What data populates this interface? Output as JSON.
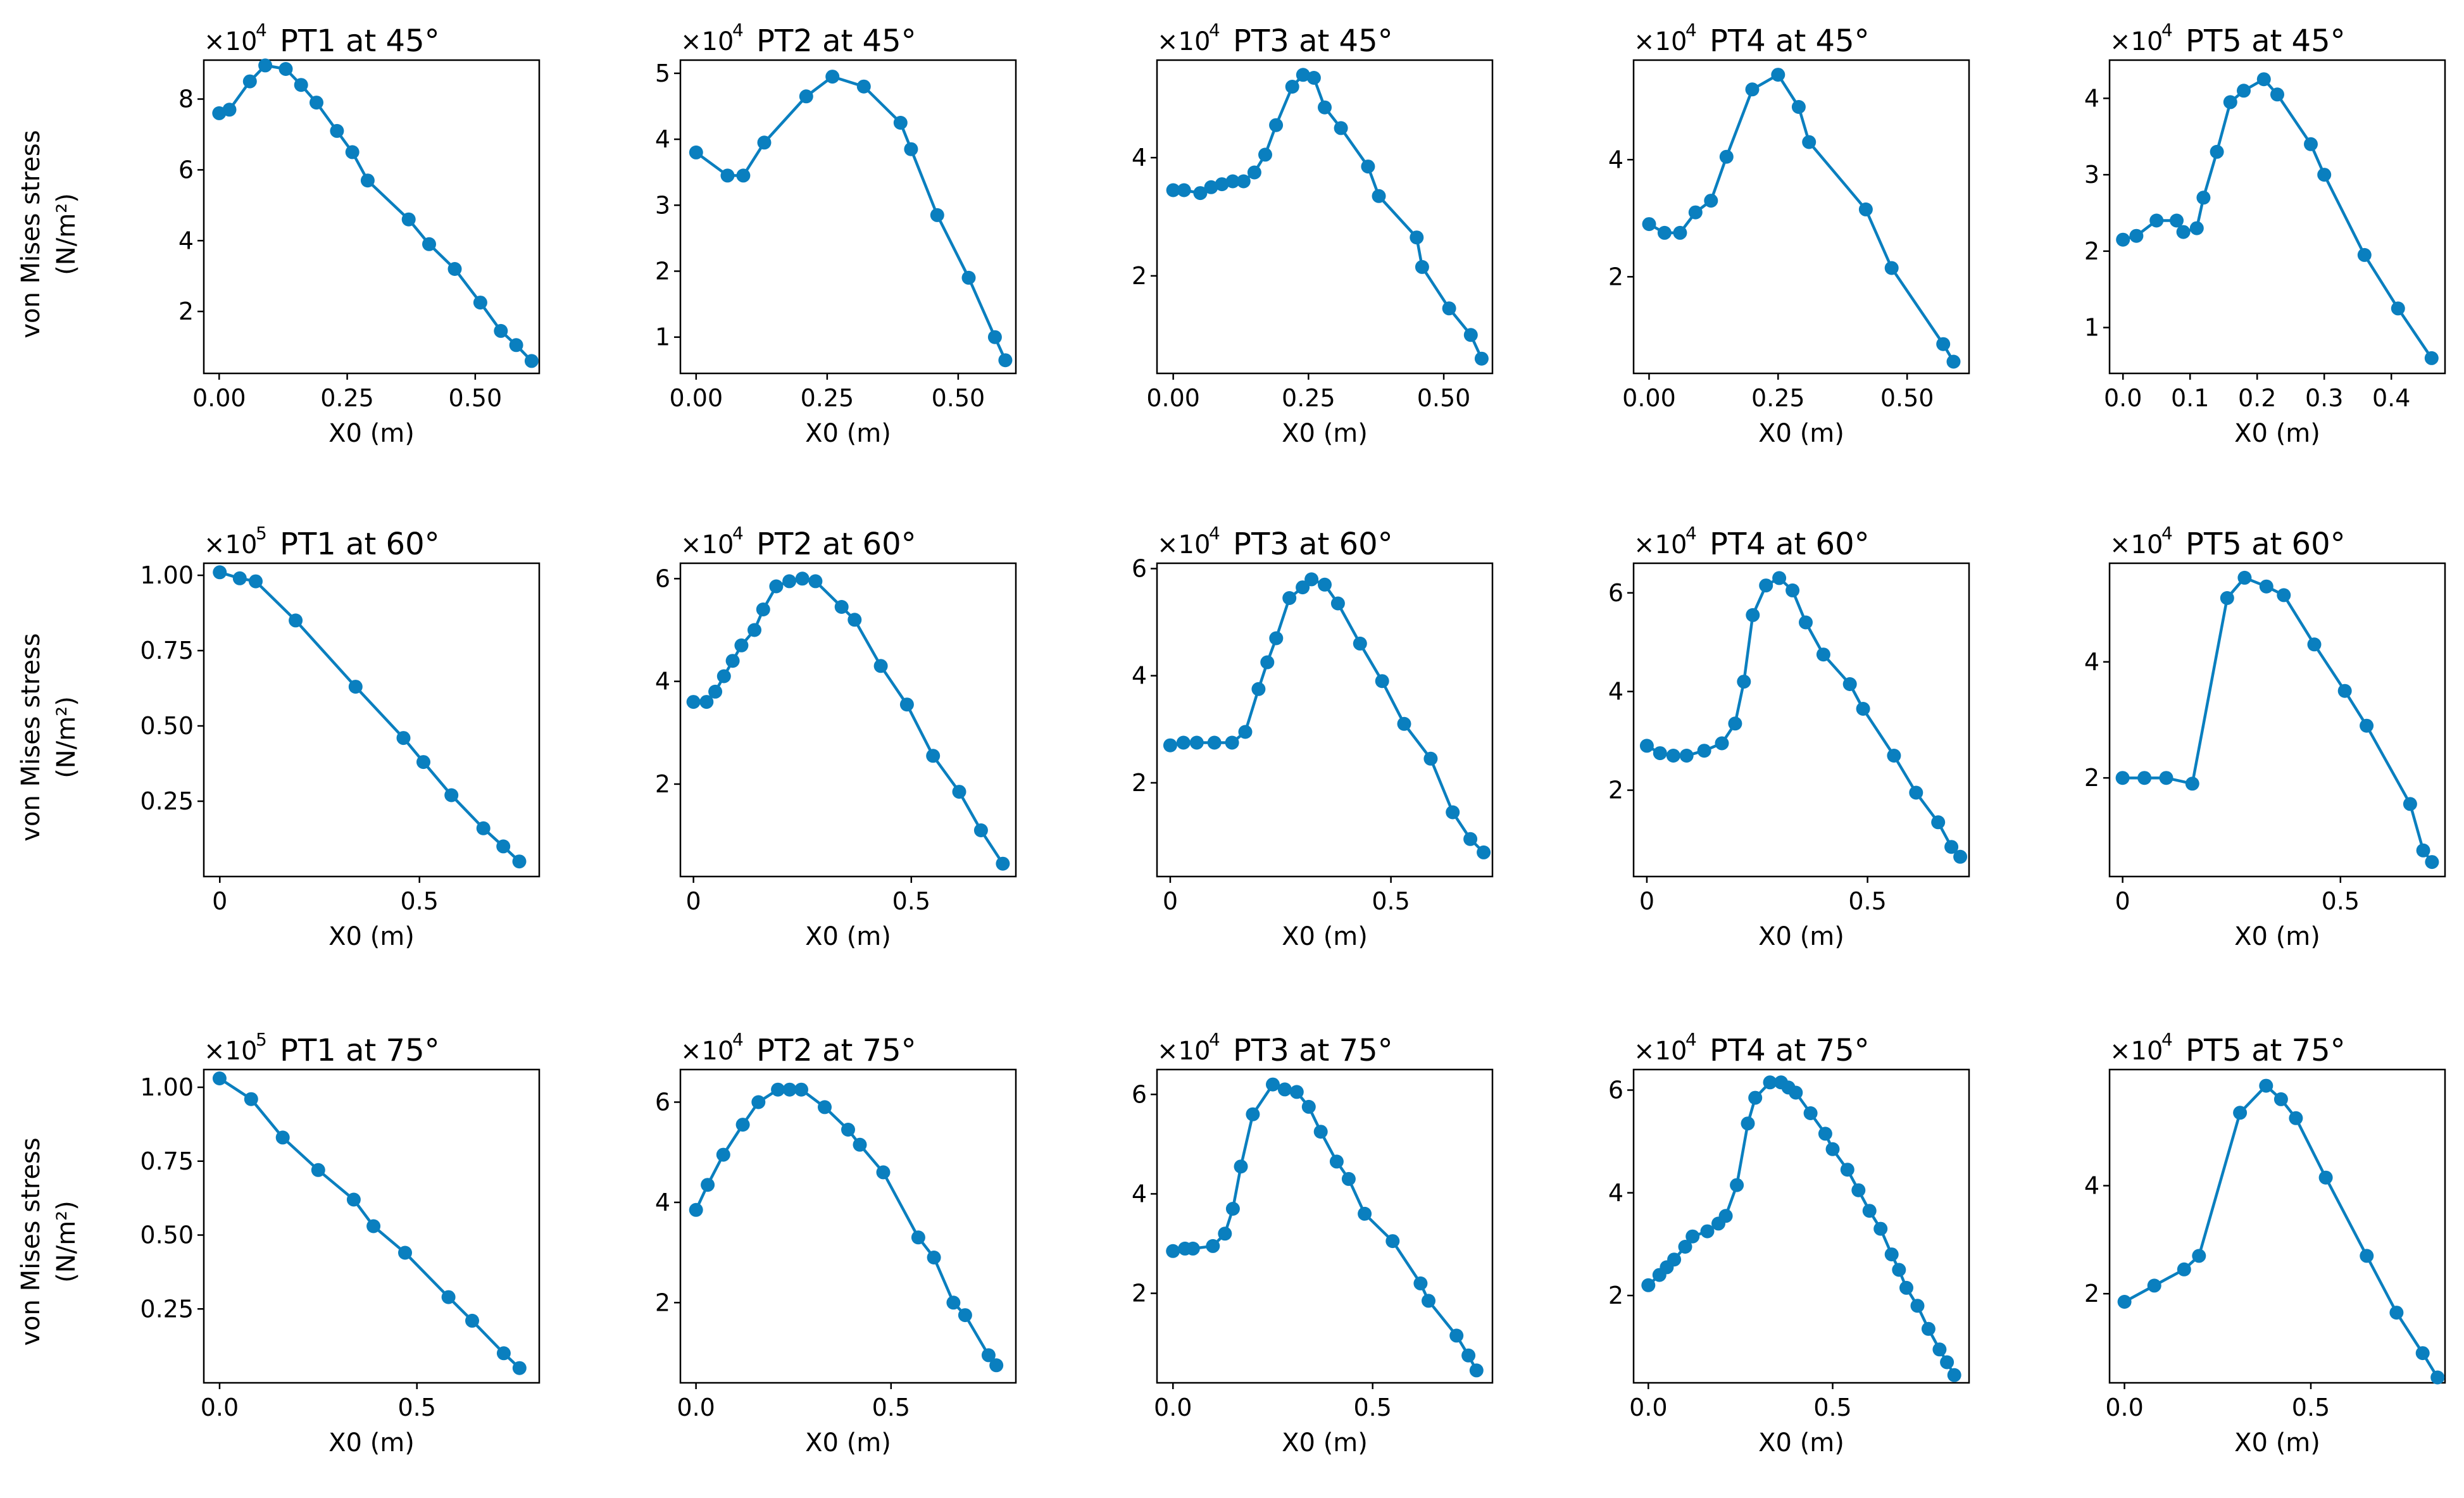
{
  "figure": {
    "ylabel_line1": "von Mises stress",
    "ylabel_line2": "(N/m²)",
    "xlabel": "X0 (m)",
    "line_color": "#0a7fbf"
  },
  "chart_data": [
    {
      "type": "line",
      "row": 0,
      "col": 0,
      "title": "PT1 at 45°",
      "scale": "×10",
      "exp": "4",
      "xlabel": "X0 (m)",
      "ylabel": "von Mises stress (N/m²)",
      "xlim": [
        -0.03,
        0.625
      ],
      "ylim": [
        0.25,
        9.1
      ],
      "xticks": [
        0,
        0.25,
        0.5
      ],
      "xtick_labels": [
        "0.00",
        "0.25",
        "0.50"
      ],
      "yticks": [
        2,
        4,
        6,
        8
      ],
      "ytick_labels": [
        "2",
        "4",
        "6",
        "8"
      ],
      "x": [
        0,
        0.02,
        0.06,
        0.09,
        0.13,
        0.16,
        0.19,
        0.23,
        0.26,
        0.29,
        0.37,
        0.41,
        0.46,
        0.51,
        0.55,
        0.58,
        0.61
      ],
      "y": [
        7.6,
        7.7,
        8.5,
        8.95,
        8.85,
        8.4,
        7.9,
        7.1,
        6.5,
        5.7,
        4.6,
        3.9,
        3.2,
        2.25,
        1.45,
        1.05,
        0.6
      ]
    },
    {
      "type": "line",
      "row": 0,
      "col": 1,
      "title": "PT2 at 45°",
      "scale": "×10",
      "exp": "4",
      "xlabel": "X0 (m)",
      "ylabel": "von Mises stress (N/m²)",
      "xlim": [
        -0.03,
        0.61
      ],
      "ylim": [
        0.45,
        5.2
      ],
      "xticks": [
        0,
        0.25,
        0.5
      ],
      "xtick_labels": [
        "0.00",
        "0.25",
        "0.50"
      ],
      "yticks": [
        1,
        2,
        3,
        4,
        5
      ],
      "ytick_labels": [
        "1",
        "2",
        "3",
        "4",
        "5"
      ],
      "x": [
        0,
        0.06,
        0.09,
        0.13,
        0.21,
        0.26,
        0.32,
        0.39,
        0.41,
        0.46,
        0.52,
        0.57,
        0.59
      ],
      "y": [
        3.8,
        3.45,
        3.45,
        3.95,
        4.65,
        4.95,
        4.8,
        4.25,
        3.85,
        2.85,
        1.9,
        1.0,
        0.65
      ]
    },
    {
      "type": "line",
      "row": 0,
      "col": 2,
      "title": "PT3 at 45°",
      "scale": "×10",
      "exp": "4",
      "xlabel": "X0 (m)",
      "ylabel": "von Mises stress (N/m²)",
      "xlim": [
        -0.03,
        0.59
      ],
      "ylim": [
        0.35,
        5.65
      ],
      "xticks": [
        0,
        0.25,
        0.5
      ],
      "xtick_labels": [
        "0.00",
        "0.25",
        "0.50"
      ],
      "yticks": [
        2,
        4
      ],
      "ytick_labels": [
        "2",
        "4"
      ],
      "x": [
        0,
        0.02,
        0.05,
        0.07,
        0.09,
        0.11,
        0.13,
        0.15,
        0.17,
        0.19,
        0.22,
        0.24,
        0.26,
        0.28,
        0.31,
        0.36,
        0.38,
        0.45,
        0.46,
        0.51,
        0.55,
        0.57
      ],
      "y": [
        3.45,
        3.45,
        3.4,
        3.5,
        3.55,
        3.6,
        3.6,
        3.75,
        4.05,
        4.55,
        5.2,
        5.4,
        5.35,
        4.85,
        4.5,
        3.85,
        3.35,
        2.65,
        2.15,
        1.45,
        1.0,
        0.6
      ]
    },
    {
      "type": "line",
      "row": 0,
      "col": 3,
      "title": "PT4 at 45°",
      "scale": "×10",
      "exp": "4",
      "xlabel": "X0 (m)",
      "ylabel": "von Mises stress (N/m²)",
      "xlim": [
        -0.03,
        0.62
      ],
      "ylim": [
        0.35,
        5.7
      ],
      "xticks": [
        0,
        0.25,
        0.5
      ],
      "xtick_labels": [
        "0.00",
        "0.25",
        "0.50"
      ],
      "yticks": [
        2,
        4
      ],
      "ytick_labels": [
        "2",
        "4"
      ],
      "x": [
        0,
        0.03,
        0.06,
        0.09,
        0.12,
        0.15,
        0.2,
        0.25,
        0.29,
        0.31,
        0.42,
        0.47,
        0.57,
        0.59
      ],
      "y": [
        2.9,
        2.75,
        2.75,
        3.1,
        3.3,
        4.05,
        5.2,
        5.45,
        4.9,
        4.3,
        3.15,
        2.15,
        0.85,
        0.55
      ]
    },
    {
      "type": "line",
      "row": 0,
      "col": 4,
      "title": "PT5 at 45°",
      "scale": "×10",
      "exp": "4",
      "xlabel": "X0 (m)",
      "ylabel": "von Mises stress (N/m²)",
      "xlim": [
        -0.02,
        0.48
      ],
      "ylim": [
        0.4,
        4.5
      ],
      "xticks": [
        0,
        0.1,
        0.2,
        0.3,
        0.4
      ],
      "xtick_labels": [
        "0.0",
        "0.1",
        "0.2",
        "0.3",
        "0.4"
      ],
      "yticks": [
        1,
        2,
        3,
        4
      ],
      "ytick_labels": [
        "1",
        "2",
        "3",
        "4"
      ],
      "x": [
        0,
        0.02,
        0.05,
        0.08,
        0.09,
        0.11,
        0.12,
        0.14,
        0.16,
        0.18,
        0.21,
        0.23,
        0.28,
        0.3,
        0.36,
        0.41,
        0.46
      ],
      "y": [
        2.15,
        2.2,
        2.4,
        2.4,
        2.25,
        2.3,
        2.7,
        3.3,
        3.95,
        4.1,
        4.25,
        4.05,
        3.4,
        3.0,
        1.95,
        1.25,
        0.6
      ]
    },
    {
      "type": "line",
      "row": 1,
      "col": 0,
      "title": "PT1 at 60°",
      "scale": "×10",
      "exp": "5",
      "xlabel": "X0 (m)",
      "ylabel": "von Mises stress (N/m²)",
      "xlim": [
        -0.04,
        0.8
      ],
      "ylim": [
        0.0,
        1.04
      ],
      "xticks": [
        0,
        0.5
      ],
      "xtick_labels": [
        "0",
        "0.5"
      ],
      "yticks": [
        0.25,
        0.5,
        0.75,
        1.0
      ],
      "ytick_labels": [
        "0.25",
        "0.50",
        "0.75",
        "1.00"
      ],
      "x": [
        0,
        0.05,
        0.09,
        0.19,
        0.34,
        0.46,
        0.51,
        0.58,
        0.66,
        0.71,
        0.75
      ],
      "y": [
        1.01,
        0.99,
        0.98,
        0.85,
        0.63,
        0.46,
        0.38,
        0.27,
        0.16,
        0.1,
        0.05
      ]
    },
    {
      "type": "line",
      "row": 1,
      "col": 1,
      "title": "PT2 at 60°",
      "scale": "×10",
      "exp": "4",
      "xlabel": "X0 (m)",
      "ylabel": "von Mises stress (N/m²)",
      "xlim": [
        -0.03,
        0.74
      ],
      "ylim": [
        0.2,
        6.3
      ],
      "xticks": [
        0,
        0.5
      ],
      "xtick_labels": [
        "0",
        "0.5"
      ],
      "yticks": [
        2,
        4,
        6
      ],
      "ytick_labels": [
        "2",
        "4",
        "6"
      ],
      "x": [
        0,
        0.03,
        0.05,
        0.07,
        0.09,
        0.11,
        0.14,
        0.16,
        0.19,
        0.22,
        0.25,
        0.28,
        0.34,
        0.37,
        0.43,
        0.49,
        0.55,
        0.61,
        0.66,
        0.71
      ],
      "y": [
        3.6,
        3.6,
        3.8,
        4.1,
        4.4,
        4.7,
        5.0,
        5.4,
        5.85,
        5.95,
        6.0,
        5.95,
        5.45,
        5.2,
        4.3,
        3.55,
        2.55,
        1.85,
        1.1,
        0.45
      ]
    },
    {
      "type": "line",
      "row": 1,
      "col": 2,
      "title": "PT3 at 60°",
      "scale": "×10",
      "exp": "4",
      "xlabel": "X0 (m)",
      "ylabel": "von Mises stress (N/m²)",
      "xlim": [
        -0.03,
        0.73
      ],
      "ylim": [
        0.25,
        6.1
      ],
      "xticks": [
        0,
        0.5
      ],
      "xtick_labels": [
        "0",
        "0.5"
      ],
      "yticks": [
        2,
        4,
        6
      ],
      "ytick_labels": [
        "2",
        "4",
        "6"
      ],
      "x": [
        0,
        0.03,
        0.06,
        0.1,
        0.14,
        0.17,
        0.2,
        0.22,
        0.24,
        0.27,
        0.3,
        0.32,
        0.35,
        0.38,
        0.43,
        0.48,
        0.53,
        0.59,
        0.64,
        0.68,
        0.71
      ],
      "y": [
        2.7,
        2.75,
        2.75,
        2.75,
        2.75,
        2.95,
        3.75,
        4.25,
        4.7,
        5.45,
        5.65,
        5.8,
        5.7,
        5.35,
        4.6,
        3.9,
        3.1,
        2.45,
        1.45,
        0.95,
        0.7
      ]
    },
    {
      "type": "line",
      "row": 1,
      "col": 3,
      "title": "PT4 at 60°",
      "scale": "×10",
      "exp": "4",
      "xlabel": "X0 (m)",
      "ylabel": "von Mises stress (N/m²)",
      "xlim": [
        -0.03,
        0.73
      ],
      "ylim": [
        0.25,
        6.6
      ],
      "xticks": [
        0,
        0.5
      ],
      "xtick_labels": [
        "0",
        "0.5"
      ],
      "yticks": [
        2,
        4,
        6
      ],
      "ytick_labels": [
        "2",
        "4",
        "6"
      ],
      "x": [
        0,
        0.03,
        0.06,
        0.09,
        0.13,
        0.17,
        0.2,
        0.22,
        0.24,
        0.27,
        0.3,
        0.33,
        0.36,
        0.4,
        0.46,
        0.49,
        0.56,
        0.61,
        0.66,
        0.69,
        0.71
      ],
      "y": [
        2.9,
        2.75,
        2.7,
        2.7,
        2.8,
        2.95,
        3.35,
        4.2,
        5.55,
        6.15,
        6.3,
        6.05,
        5.4,
        4.75,
        4.15,
        3.65,
        2.7,
        1.95,
        1.35,
        0.85,
        0.65
      ]
    },
    {
      "type": "line",
      "row": 1,
      "col": 4,
      "title": "PT5 at 60°",
      "scale": "×10",
      "exp": "4",
      "xlabel": "X0 (m)",
      "ylabel": "von Mises stress (N/m²)",
      "xlim": [
        -0.03,
        0.74
      ],
      "ylim": [
        0.3,
        5.7
      ],
      "xticks": [
        0,
        0.5
      ],
      "xtick_labels": [
        "0",
        "0.5"
      ],
      "yticks": [
        2,
        4
      ],
      "ytick_labels": [
        "2",
        "4"
      ],
      "x": [
        0,
        0.05,
        0.1,
        0.16,
        0.24,
        0.28,
        0.33,
        0.37,
        0.44,
        0.51,
        0.56,
        0.66,
        0.69,
        0.71
      ],
      "y": [
        2.0,
        2.0,
        2.0,
        1.9,
        5.1,
        5.45,
        5.3,
        5.15,
        4.3,
        3.5,
        2.9,
        1.55,
        0.75,
        0.55
      ]
    },
    {
      "type": "line",
      "row": 2,
      "col": 0,
      "title": "PT1 at 75°",
      "scale": "×10",
      "exp": "5",
      "xlabel": "X0 (m)",
      "ylabel": "von Mises stress (N/m²)",
      "xlim": [
        -0.04,
        0.81
      ],
      "ylim": [
        0.0,
        1.06
      ],
      "xticks": [
        0,
        0.5
      ],
      "xtick_labels": [
        "0.0",
        "0.5"
      ],
      "yticks": [
        0.25,
        0.5,
        0.75,
        1.0
      ],
      "ytick_labels": [
        "0.25",
        "0.50",
        "0.75",
        "1.00"
      ],
      "x": [
        0,
        0.08,
        0.16,
        0.25,
        0.34,
        0.39,
        0.47,
        0.58,
        0.64,
        0.72,
        0.76
      ],
      "y": [
        1.03,
        0.96,
        0.83,
        0.72,
        0.62,
        0.53,
        0.44,
        0.29,
        0.21,
        0.1,
        0.05
      ]
    },
    {
      "type": "line",
      "row": 2,
      "col": 1,
      "title": "PT2 at 75°",
      "scale": "×10",
      "exp": "4",
      "xlabel": "X0 (m)",
      "ylabel": "von Mises stress (N/m²)",
      "xlim": [
        -0.04,
        0.82
      ],
      "ylim": [
        0.4,
        6.65
      ],
      "xticks": [
        0,
        0.5
      ],
      "xtick_labels": [
        "0.0",
        "0.5"
      ],
      "yticks": [
        2,
        4,
        6
      ],
      "ytick_labels": [
        "2",
        "4",
        "6"
      ],
      "x": [
        0,
        0.03,
        0.07,
        0.12,
        0.16,
        0.21,
        0.24,
        0.27,
        0.33,
        0.39,
        0.42,
        0.48,
        0.57,
        0.61,
        0.66,
        0.69,
        0.75,
        0.77
      ],
      "y": [
        3.85,
        4.35,
        4.95,
        5.55,
        6.0,
        6.25,
        6.25,
        6.25,
        5.9,
        5.45,
        5.15,
        4.6,
        3.3,
        2.9,
        2.0,
        1.75,
        0.95,
        0.75
      ]
    },
    {
      "type": "line",
      "row": 2,
      "col": 2,
      "title": "PT3 at 75°",
      "scale": "×10",
      "exp": "4",
      "xlabel": "X0 (m)",
      "ylabel": "von Mises stress (N/m²)",
      "xlim": [
        -0.04,
        0.8
      ],
      "ylim": [
        0.2,
        6.5
      ],
      "xticks": [
        0,
        0.5
      ],
      "xtick_labels": [
        "0.0",
        "0.5"
      ],
      "yticks": [
        2,
        4,
        6
      ],
      "ytick_labels": [
        "2",
        "4",
        "6"
      ],
      "x": [
        0,
        0.03,
        0.05,
        0.1,
        0.13,
        0.15,
        0.17,
        0.2,
        0.25,
        0.28,
        0.31,
        0.34,
        0.37,
        0.41,
        0.44,
        0.48,
        0.55,
        0.62,
        0.64,
        0.71,
        0.74,
        0.76
      ],
      "y": [
        2.85,
        2.9,
        2.9,
        2.95,
        3.2,
        3.7,
        4.55,
        5.6,
        6.2,
        6.1,
        6.05,
        5.75,
        5.25,
        4.65,
        4.3,
        3.6,
        3.05,
        2.2,
        1.85,
        1.15,
        0.75,
        0.45
      ]
    },
    {
      "type": "line",
      "row": 2,
      "col": 3,
      "title": "PT4 at 75°",
      "scale": "×10",
      "exp": "4",
      "xlabel": "X0 (m)",
      "ylabel": "von Mises stress (N/m²)",
      "xlim": [
        -0.04,
        0.87
      ],
      "ylim": [
        0.3,
        6.4
      ],
      "xticks": [
        0,
        0.5
      ],
      "xtick_labels": [
        "0.0",
        "0.5"
      ],
      "yticks": [
        2,
        4,
        6
      ],
      "ytick_labels": [
        "2",
        "4",
        "6"
      ],
      "x": [
        0,
        0.03,
        0.05,
        0.07,
        0.1,
        0.12,
        0.16,
        0.19,
        0.21,
        0.24,
        0.27,
        0.29,
        0.33,
        0.36,
        0.38,
        0.4,
        0.44,
        0.48,
        0.5,
        0.54,
        0.57,
        0.6,
        0.63,
        0.66,
        0.68,
        0.7,
        0.73,
        0.76,
        0.79,
        0.81,
        0.83
      ],
      "y": [
        2.2,
        2.4,
        2.55,
        2.7,
        2.95,
        3.15,
        3.25,
        3.4,
        3.55,
        4.15,
        5.35,
        5.85,
        6.15,
        6.15,
        6.05,
        5.95,
        5.55,
        5.15,
        4.85,
        4.45,
        4.05,
        3.65,
        3.3,
        2.8,
        2.5,
        2.15,
        1.8,
        1.35,
        0.95,
        0.7,
        0.45
      ]
    },
    {
      "type": "line",
      "row": 2,
      "col": 4,
      "title": "PT5 at 75°",
      "scale": "×10",
      "exp": "4",
      "xlabel": "X0 (m)",
      "ylabel": "von Mises stress (N/m²)",
      "xlim": [
        -0.04,
        0.86
      ],
      "ylim": [
        0.35,
        6.15
      ],
      "xticks": [
        0,
        0.5
      ],
      "xtick_labels": [
        "0.0",
        "0.5"
      ],
      "yticks": [
        2,
        4
      ],
      "ytick_labels": [
        "2",
        "4"
      ],
      "x": [
        0,
        0.08,
        0.16,
        0.2,
        0.31,
        0.38,
        0.42,
        0.46,
        0.54,
        0.65,
        0.73,
        0.8,
        0.84
      ],
      "y": [
        1.85,
        2.15,
        2.45,
        2.7,
        5.35,
        5.85,
        5.6,
        5.25,
        4.15,
        2.7,
        1.65,
        0.9,
        0.45
      ]
    }
  ]
}
